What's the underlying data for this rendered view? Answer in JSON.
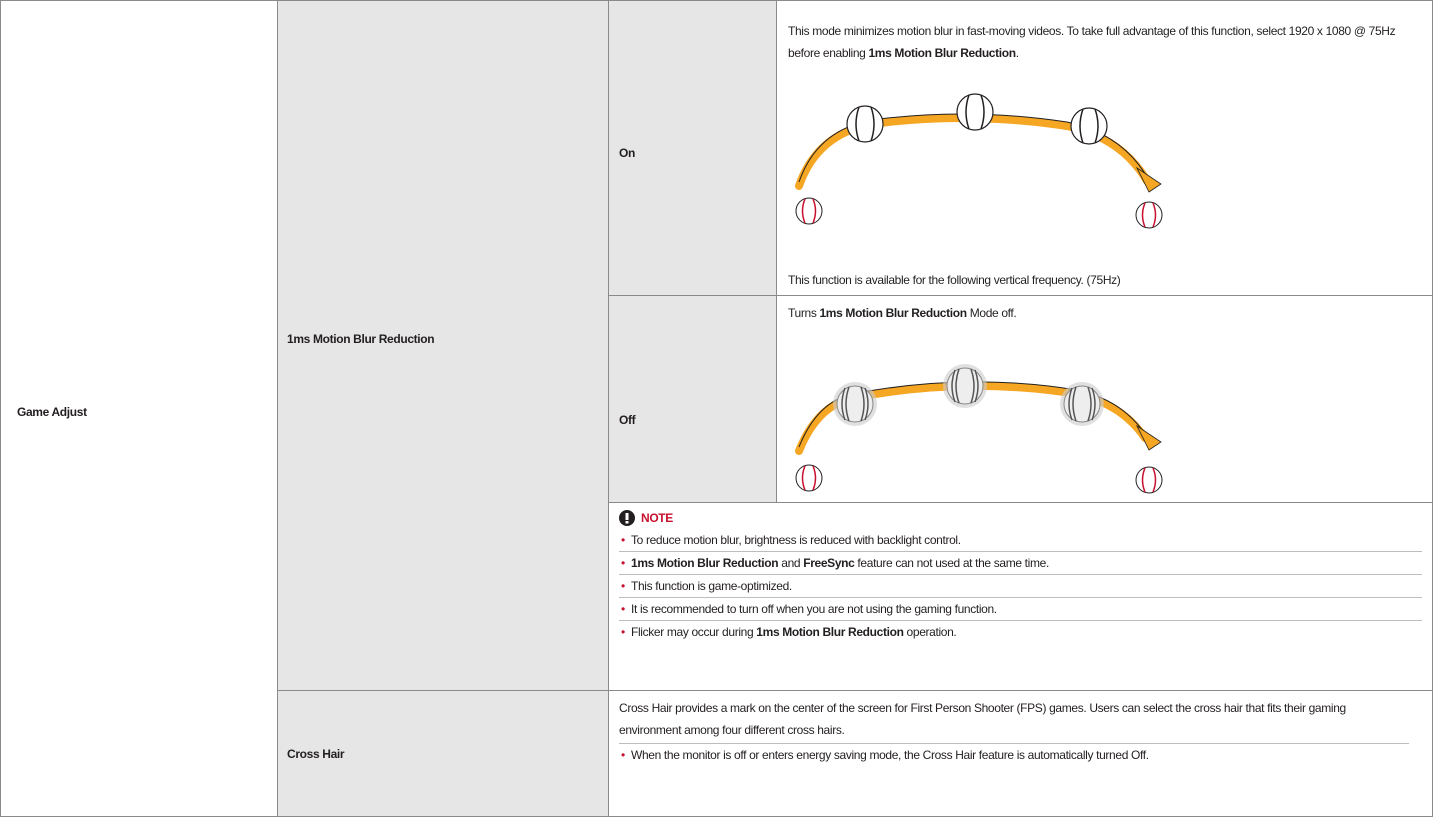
{
  "table": {
    "menu": "Game Adjust",
    "rows": [
      {
        "setting": "1ms Motion Blur Reduction",
        "options": [
          {
            "label": "On",
            "description": [
              "This mode minimizes motion blur in fast-moving videos. To take full advantage of this function, select 1920 x 1080 @ 75Hz before enabling ",
              "1ms Motion Blur Reduction",
              "."
            ],
            "footnote": "This function is available for the following vertical frequency. (75Hz)"
          },
          {
            "label": "Off",
            "description": [
              "Turns ",
              "1ms Motion Blur Reduction",
              " Mode off."
            ]
          }
        ],
        "note": {
          "title": "NOTE",
          "items": [
            [
              "To reduce motion blur, brightness is reduced with backlight control."
            ],
            [
              "1ms Motion Blur Reduction",
              " and ",
              "FreeSync",
              " feature can not used at the same time."
            ],
            [
              "This function is game-optimized."
            ],
            [
              "It is recommended to turn off when you are not using the gaming function."
            ],
            [
              "Flicker may occur during ",
              "1ms Motion Blur Reduction",
              " operation."
            ]
          ]
        }
      },
      {
        "setting": "Cross Hair",
        "description": "Cross Hair provides a mark on the center of the screen for First Person Shooter (FPS) games. Users can select the cross hair that fits their gaming environment among four different cross hairs.",
        "items": [
          "When the monitor is off or enters energy saving mode, the Cross Hair feature is automatically turned Off."
        ]
      }
    ]
  }
}
